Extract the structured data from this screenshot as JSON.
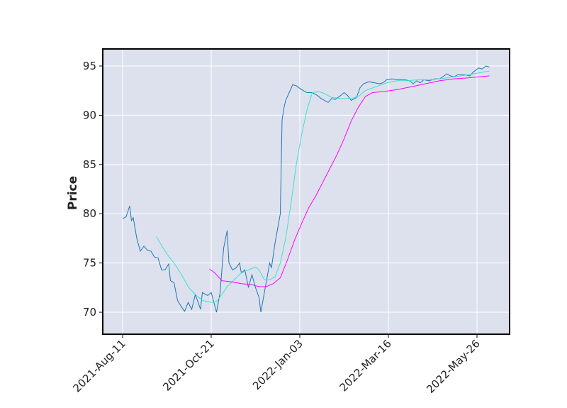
{
  "chart_data": {
    "type": "line",
    "y_label": "Price",
    "xlim": [
      -11.2,
      218.4
    ],
    "ylim": [
      67.77,
      96.73
    ],
    "xticks": [
      {
        "value": 0,
        "label": "2021-Aug-11"
      },
      {
        "value": 50,
        "label": "2021-Oct-21"
      },
      {
        "value": 100,
        "label": "2022-Jan-03"
      },
      {
        "value": 150,
        "label": "2022-Mar-16"
      },
      {
        "value": 200,
        "label": "2022-May-26"
      }
    ],
    "yticks": [
      70,
      75,
      80,
      85,
      90,
      95
    ],
    "grid": true,
    "series": [
      {
        "color": "#1f77b4",
        "x": [
          0,
          2,
          4,
          5,
          6,
          8,
          10,
          12,
          14,
          16,
          18,
          20,
          22,
          24,
          26,
          27,
          29,
          31,
          33,
          35,
          37,
          39,
          41,
          44,
          45,
          48,
          50,
          53,
          55,
          57,
          59,
          60,
          62,
          64,
          66,
          67,
          69,
          71,
          73,
          75,
          77,
          78,
          80,
          81,
          83,
          84,
          86,
          88,
          89,
          90,
          91,
          92,
          94,
          96,
          98,
          101,
          104,
          107,
          110,
          112,
          114,
          116,
          118,
          120,
          123,
          125,
          127,
          129,
          132,
          134,
          136,
          139,
          142,
          145,
          147,
          149,
          152,
          155,
          159,
          162,
          164,
          166,
          168,
          170,
          173,
          176,
          179,
          183,
          185,
          187,
          189,
          193,
          196,
          198,
          201,
          203,
          205,
          207
        ],
        "values": [
          79.5,
          79.7,
          80.8,
          79.3,
          79.6,
          77.5,
          76.2,
          76.7,
          76.3,
          76.2,
          75.6,
          75.5,
          74.3,
          74.3,
          74.9,
          73.2,
          73,
          71.2,
          70.6,
          70.1,
          71,
          70.3,
          71.8,
          70.3,
          72,
          71.7,
          72,
          70,
          72,
          76.5,
          78.3,
          75,
          74.3,
          74.5,
          75,
          74,
          74.3,
          72.5,
          73.8,
          72.5,
          71.5,
          70,
          72,
          73,
          75,
          74.5,
          77,
          79,
          80,
          89.5,
          90.7,
          91.5,
          92.3,
          93.1,
          93,
          92.6,
          92.3,
          92.3,
          92,
          91.7,
          91.5,
          91.3,
          91.7,
          91.6,
          92,
          92.3,
          92,
          91.5,
          91.8,
          92.8,
          93.2,
          93.4,
          93.3,
          93.2,
          93.3,
          93.6,
          93.7,
          93.6,
          93.6,
          93.5,
          93.2,
          93.5,
          93.3,
          93.6,
          93.5,
          93.7,
          93.7,
          94.2,
          94,
          93.9,
          94.1,
          94.1,
          94,
          94.4,
          94.8,
          94.7,
          95,
          94.9
        ]
      },
      {
        "color": "#40e0d0",
        "x": [
          19,
          22,
          25,
          29,
          33,
          37,
          41,
          45,
          50,
          53,
          56,
          59,
          63,
          67,
          71,
          75,
          77,
          80,
          83,
          86,
          89,
          92,
          95,
          98,
          101,
          104,
          107,
          111,
          114,
          118,
          123,
          129,
          133,
          137,
          143,
          149,
          155,
          161,
          167,
          173,
          179,
          187,
          195,
          201,
          207
        ],
        "values": [
          77.7,
          76.8,
          75.9,
          75,
          73.9,
          72.6,
          71.8,
          71.2,
          71,
          71.1,
          71.8,
          72.6,
          73.3,
          74,
          74.3,
          74.6,
          74.3,
          73.3,
          73.3,
          73.6,
          75,
          77.5,
          81,
          85,
          88,
          90.5,
          92.3,
          92.4,
          92.2,
          91.8,
          91.7,
          91.7,
          91.9,
          92.5,
          92.9,
          93.3,
          93.5,
          93.5,
          93.6,
          93.6,
          93.7,
          93.9,
          94.1,
          94.3,
          94.5
        ]
      },
      {
        "color": "#ff00ff",
        "x": [
          49,
          52,
          56,
          61,
          67,
          73,
          77,
          81,
          85,
          89,
          93,
          97,
          101,
          105,
          109,
          113,
          117,
          121,
          125,
          129,
          133,
          137,
          141,
          147,
          155,
          163,
          171,
          179,
          187,
          195,
          207
        ],
        "values": [
          74.4,
          74,
          73.2,
          73.1,
          72.9,
          72.8,
          72.6,
          72.6,
          72.9,
          73.5,
          75.3,
          77.3,
          79,
          80.6,
          81.8,
          83.2,
          84.6,
          86,
          87.6,
          89.4,
          90.8,
          91.9,
          92.3,
          92.4,
          92.6,
          92.9,
          93.2,
          93.5,
          93.7,
          93.8,
          94
        ]
      }
    ]
  }
}
